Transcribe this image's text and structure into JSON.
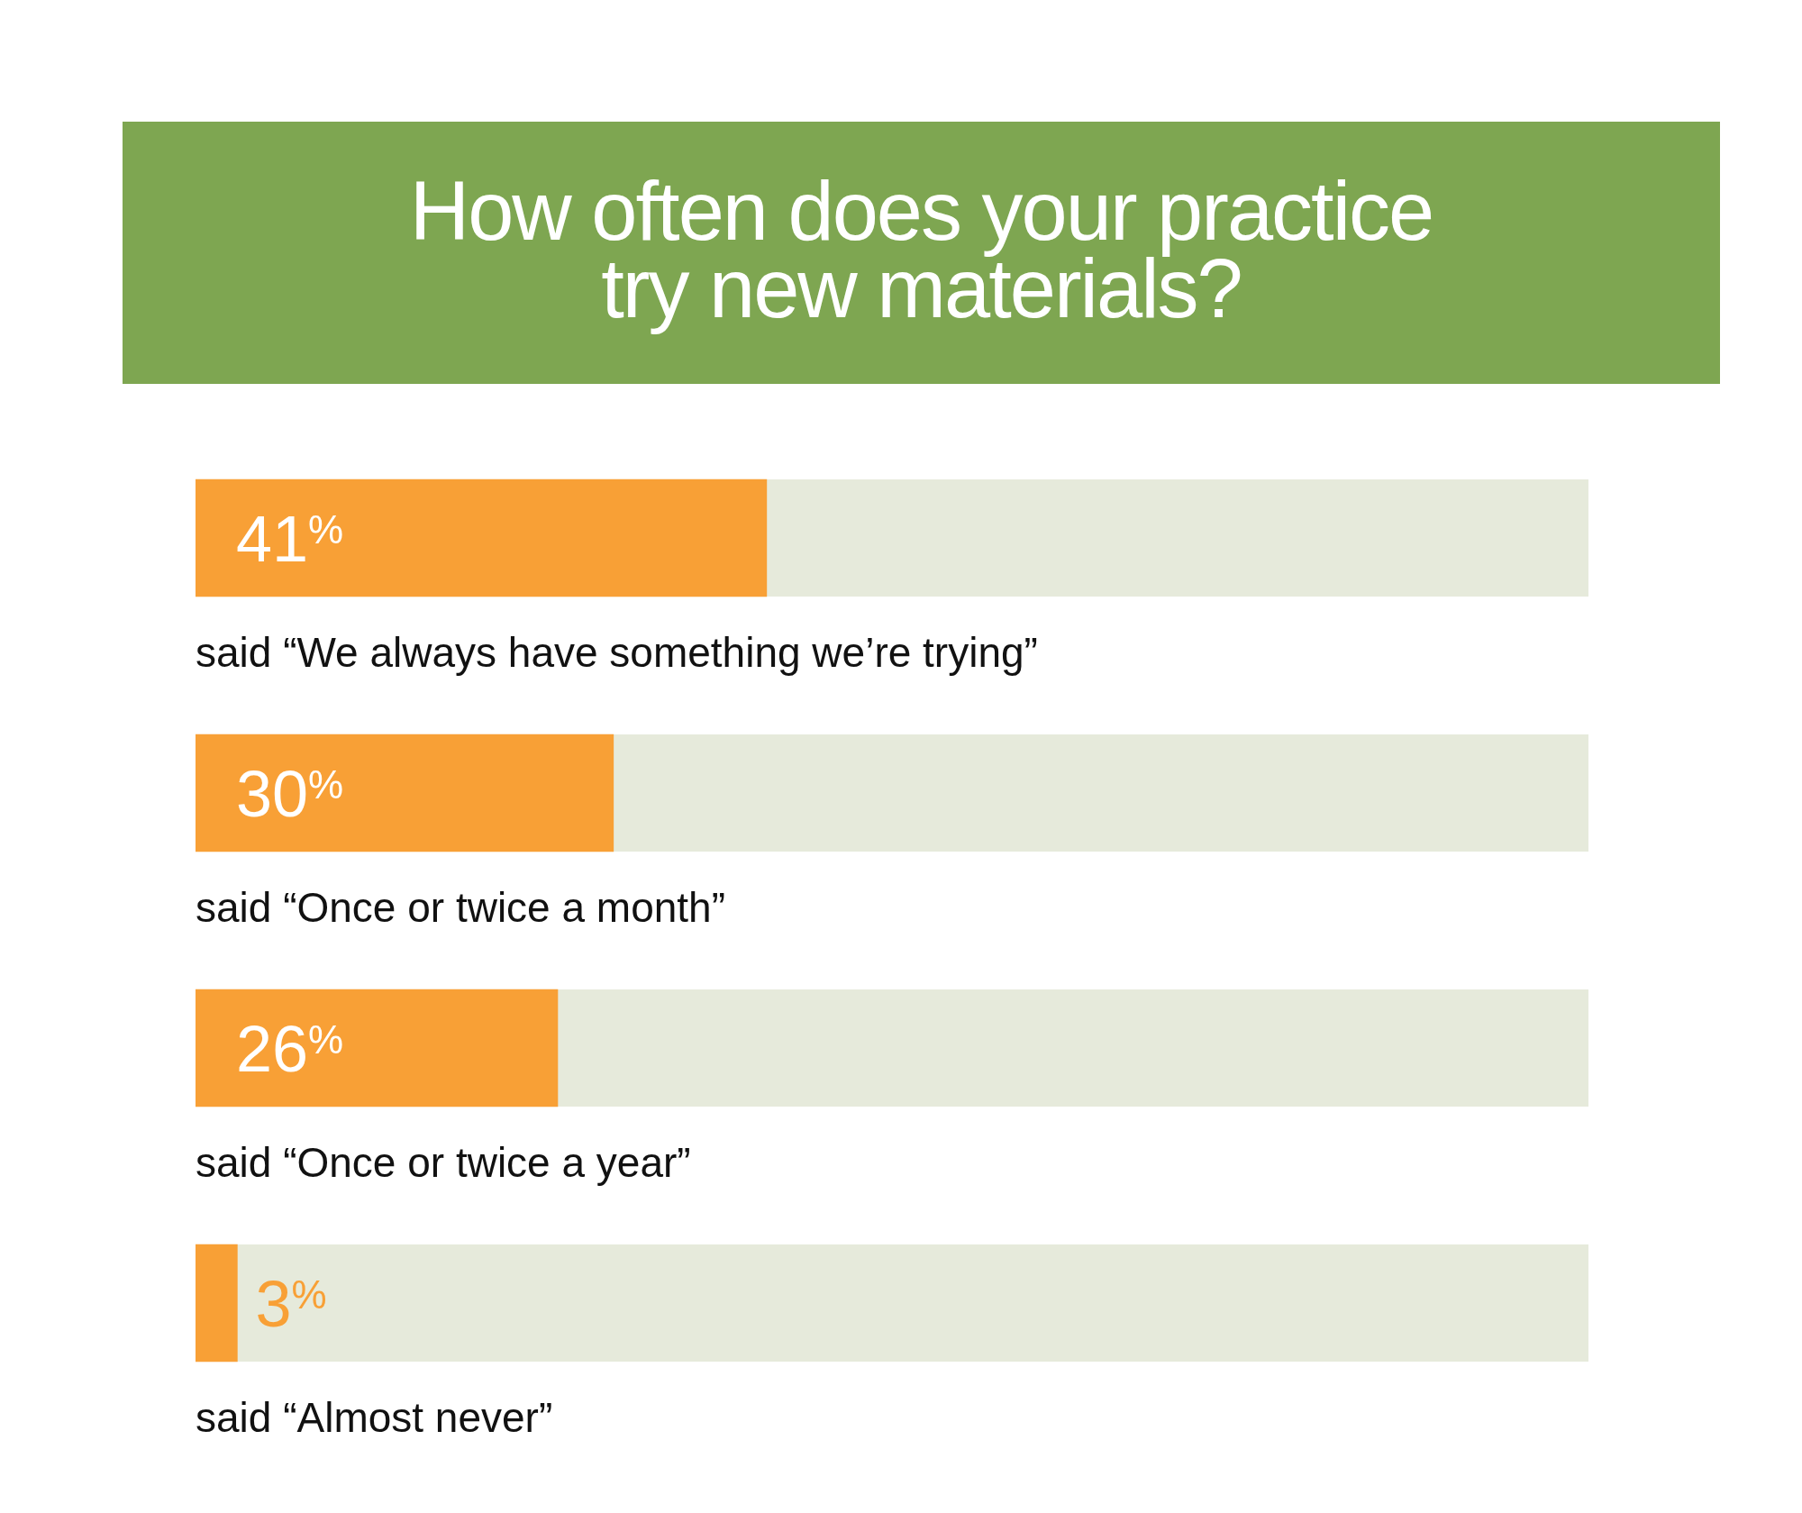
{
  "chart_data": {
    "type": "bar",
    "orientation": "horizontal",
    "title": "How often does your practice try new materials?",
    "categories": [
      "said “We always have something we’re trying”",
      "said “Once or twice a month”",
      "said “Once or twice a year”",
      "said “Almost never”"
    ],
    "values": [
      41,
      30,
      26,
      3
    ],
    "color": "#f8a036",
    "value_labels": [
      "41$^{%}$",
      "30$^{%}$",
      "26$^{%}$",
      "3$^{%}$"
    ],
    "xlim": [
      0,
      100
    ],
    "tick_labels": "y"
  }
}
